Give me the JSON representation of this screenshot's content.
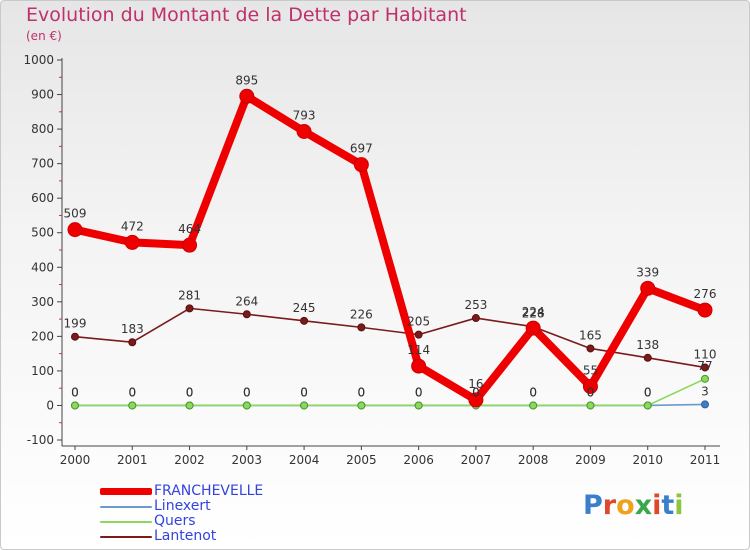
{
  "title": "Evolution du Montant de la Dette par Habitant",
  "subtitle": "(en €)",
  "brand": {
    "text": "Proxiti",
    "letters": [
      "P",
      "r",
      "o",
      "x",
      "i",
      "t",
      "i"
    ],
    "letter_colors": [
      "#3a7fc9",
      "#e0482a",
      "#f0a21c",
      "#3aa84a",
      "#e0482a",
      "#3a7fc9",
      "#8cc63f"
    ]
  },
  "chart_data": {
    "type": "line",
    "title": "Evolution du Montant de la Dette par Habitant",
    "subtitle": "(en €)",
    "xlabel": "",
    "ylabel": "",
    "x": [
      "2000",
      "2001",
      "2002",
      "2003",
      "2004",
      "2005",
      "2006",
      "2007",
      "2008",
      "2009",
      "2010",
      "2011"
    ],
    "ylim": [
      -100,
      1000
    ],
    "yticks": [
      -100,
      0,
      100,
      200,
      300,
      400,
      500,
      600,
      700,
      800,
      900,
      1000
    ],
    "grid": false,
    "legend_position": "bottom-left",
    "series": [
      {
        "name": "Lantenot",
        "color": "#7a1a1a",
        "values": [
          199,
          183,
          281,
          264,
          245,
          226,
          205,
          253,
          228,
          165,
          138,
          110
        ],
        "labels": [
          "199",
          "183",
          "281",
          "264",
          "245",
          "226",
          "205",
          "253",
          "228",
          "165",
          "138",
          "110"
        ]
      },
      {
        "name": "Linexert",
        "color": "#6a9bc9",
        "values": [
          0,
          0,
          0,
          0,
          0,
          0,
          0,
          0,
          0,
          0,
          0,
          3
        ],
        "labels": [
          "0",
          "0",
          "0",
          "0",
          "0",
          "0",
          "0",
          "0",
          "0",
          "0",
          "0",
          "3"
        ]
      },
      {
        "name": "Quers",
        "color": "#8cd85a",
        "values": [
          0,
          0,
          0,
          0,
          0,
          0,
          0,
          0,
          0,
          0,
          0,
          77
        ],
        "labels": [
          "0",
          "0",
          "0",
          "0",
          "0",
          "0",
          "0",
          "0",
          "0",
          "0",
          "0",
          "77"
        ]
      },
      {
        "name": "FRANCHEVELLE",
        "color": "#ee0000",
        "values": [
          509,
          472,
          464,
          895,
          793,
          697,
          114,
          16,
          224,
          55,
          339,
          276
        ],
        "labels": [
          "509",
          "472",
          "464",
          "895",
          "793",
          "697",
          "114",
          "16",
          "224",
          "55",
          "339",
          "276"
        ]
      }
    ]
  },
  "legend": {
    "items": [
      {
        "label": "FRANCHEVELLE",
        "color": "#ee0000",
        "text_color": "#3344dd"
      },
      {
        "label": "Linexert",
        "color": "#6a9bc9",
        "text_color": "#3344dd"
      },
      {
        "label": "Quers",
        "color": "#8cd85a",
        "text_color": "#3344dd"
      },
      {
        "label": "Lantenot",
        "color": "#7a1a1a",
        "text_color": "#3344dd"
      }
    ]
  }
}
